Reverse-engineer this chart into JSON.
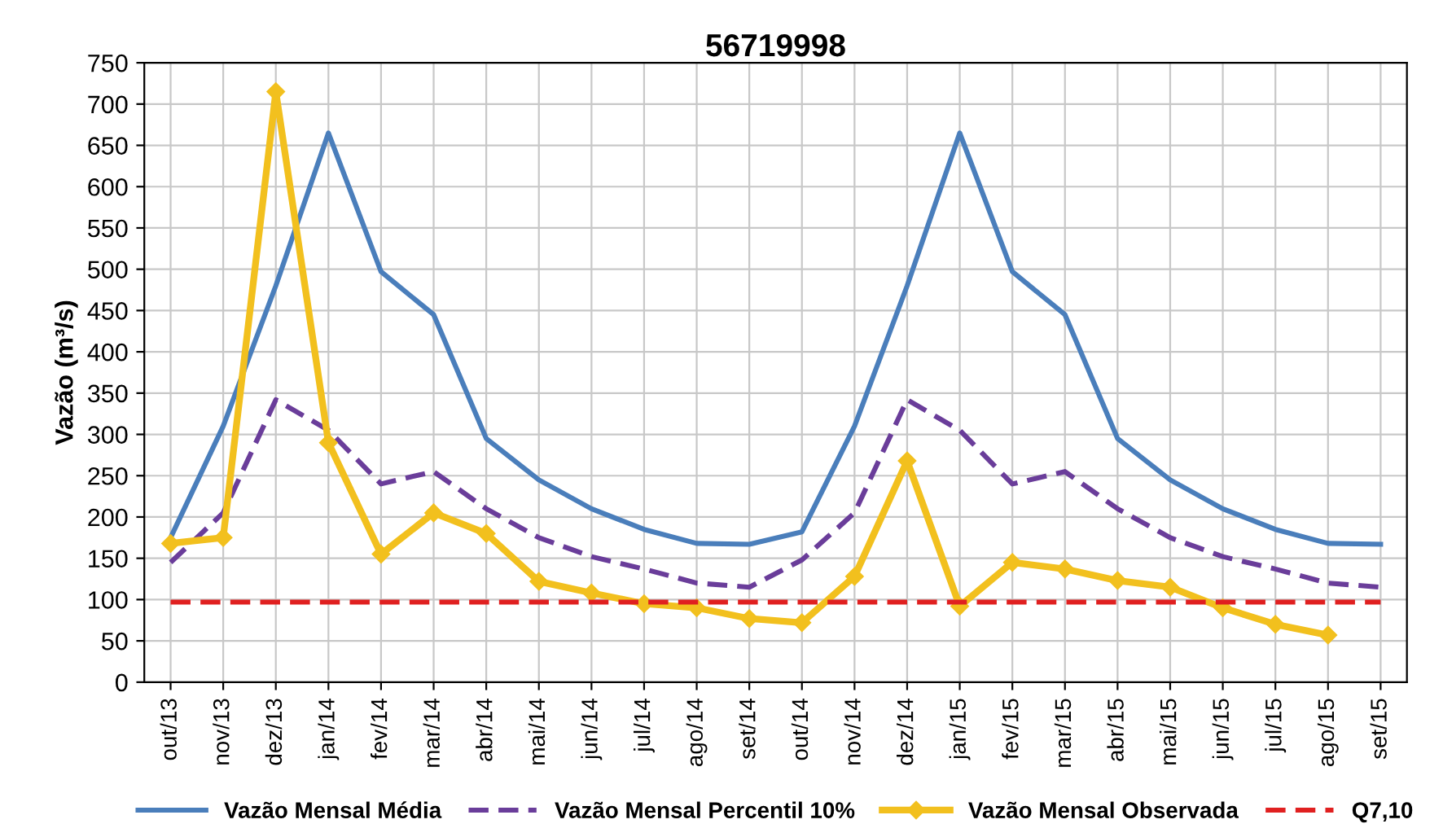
{
  "chart_data": {
    "type": "line",
    "title": "56719998",
    "ylabel": "Vazão (m³/s)",
    "categories": [
      "out/13",
      "nov/13",
      "dez/13",
      "jan/14",
      "fev/14",
      "mar/14",
      "abr/14",
      "mai/14",
      "jun/14",
      "jul/14",
      "ago/14",
      "set/14",
      "out/14",
      "nov/14",
      "dez/14",
      "jan/15",
      "fev/15",
      "mar/15",
      "abr/15",
      "mai/15",
      "jun/15",
      "jul/15",
      "ago/15",
      "set/15"
    ],
    "series": [
      {
        "name": "Vazão Mensal Média",
        "color": "#4a7ebb",
        "line_style": "solid",
        "marker": "none",
        "values": [
          175,
          310,
          480,
          665,
          497,
          445,
          295,
          245,
          210,
          185,
          168,
          167,
          182,
          310,
          480,
          665,
          497,
          445,
          295,
          245,
          210,
          185,
          168,
          167
        ]
      },
      {
        "name": "Vazão Mensal Percentil 10%",
        "color": "#6a3d9a",
        "line_style": "dashed",
        "marker": "none",
        "values": [
          145,
          205,
          342,
          305,
          240,
          255,
          210,
          175,
          152,
          137,
          120,
          115,
          148,
          205,
          342,
          305,
          240,
          255,
          210,
          175,
          152,
          137,
          120,
          115
        ]
      },
      {
        "name": "Vazão Mensal Observada",
        "color": "#f2c01e",
        "line_style": "solid",
        "marker": "diamond",
        "values": [
          168,
          175,
          715,
          290,
          155,
          205,
          180,
          122,
          108,
          95,
          90,
          77,
          72,
          128,
          268,
          92,
          145,
          137,
          123,
          115,
          90,
          70,
          57,
          null
        ]
      },
      {
        "name": "Q7,10",
        "color": "#e02020",
        "line_style": "dashed",
        "marker": "none",
        "values": [
          97,
          97,
          97,
          97,
          97,
          97,
          97,
          97,
          97,
          97,
          97,
          97,
          97,
          97,
          97,
          97,
          97,
          97,
          97,
          97,
          97,
          97,
          97,
          97
        ]
      }
    ],
    "ylim": [
      0,
      750
    ],
    "yticks": [
      0,
      50,
      100,
      150,
      200,
      250,
      300,
      350,
      400,
      450,
      500,
      550,
      600,
      650,
      700,
      750
    ],
    "grid": true,
    "legend": "bottom"
  }
}
